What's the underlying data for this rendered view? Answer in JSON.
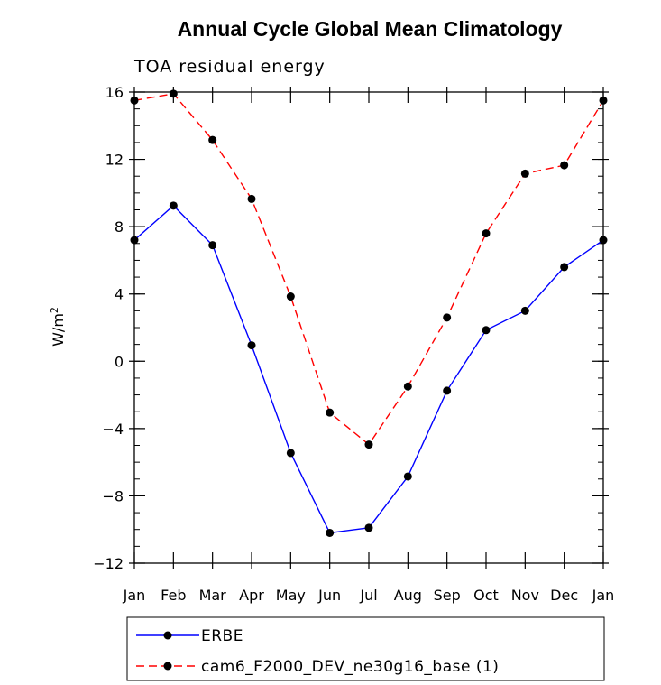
{
  "chart_data": {
    "type": "line",
    "title": "Annual Cycle Global Mean Climatology",
    "subtitle": "TOA residual energy",
    "ylabel": "W/m",
    "ylabel_superscript": "2",
    "categories": [
      "Jan",
      "Feb",
      "Mar",
      "Apr",
      "May",
      "Jun",
      "Jul",
      "Aug",
      "Sep",
      "Oct",
      "Nov",
      "Dec",
      "Jan"
    ],
    "ylim": [
      -12,
      16
    ],
    "yticks": [
      -12,
      -8,
      -4,
      0,
      4,
      8,
      12,
      16
    ],
    "ytick_labels": [
      "−12",
      "−8",
      "−4",
      "0",
      "4",
      "8",
      "12",
      "16"
    ],
    "minor_ytick_step": 1,
    "grid": false,
    "legend_position": "bottom",
    "series": [
      {
        "name": "ERBE",
        "color": "#0000ff",
        "dash": "solid",
        "marker": "filled-circle",
        "values": [
          7.2,
          9.25,
          6.9,
          0.95,
          -5.45,
          -10.2,
          -9.9,
          -6.85,
          -1.75,
          1.85,
          3.0,
          5.6,
          7.2
        ]
      },
      {
        "name": "cam6_F2000_DEV_ne30g16_base (1)",
        "color": "#ff0000",
        "dash": "dashed",
        "marker": "filled-circle",
        "values": [
          15.5,
          15.9,
          13.15,
          9.65,
          3.85,
          -3.05,
          -4.95,
          -1.5,
          2.6,
          7.6,
          11.15,
          11.65,
          15.5
        ]
      }
    ]
  }
}
